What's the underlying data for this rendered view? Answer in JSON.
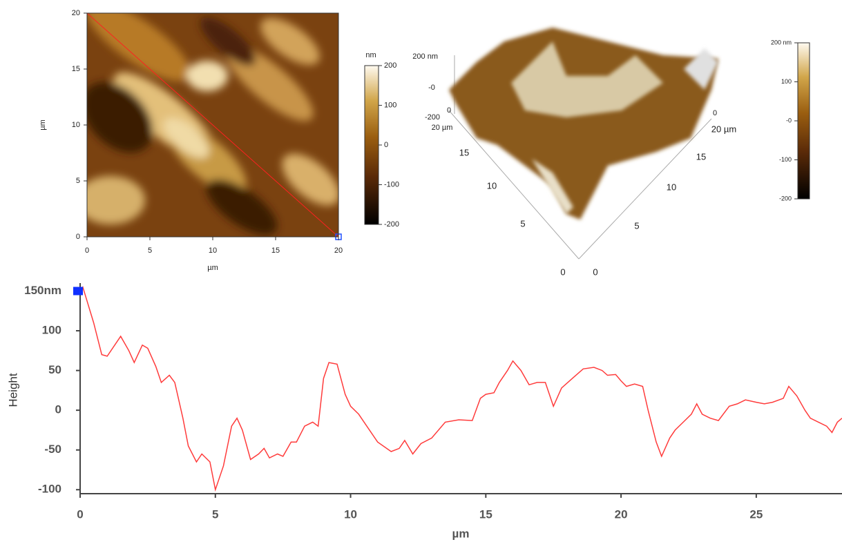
{
  "chart_data": [
    {
      "type": "heatmap",
      "xlabel": "µm",
      "ylabel": "µm",
      "xlim": [
        0,
        20
      ],
      "ylim": [
        0,
        20
      ],
      "xticks": [
        0,
        5,
        10,
        15,
        20
      ],
      "yticks": [
        0,
        5,
        10,
        15,
        20
      ],
      "colorbar_label": "nm",
      "clim": [
        -200,
        200
      ],
      "cticks": [
        -200,
        -100,
        0,
        100,
        200
      ]
    },
    {
      "type": "surface",
      "labels": [
        "200 nm",
        "-0",
        "-200",
        "0",
        "20 µm",
        "15",
        "10",
        "5",
        "0",
        "0",
        "5",
        "10",
        "15",
        "20 µm",
        "0"
      ],
      "clim": [
        -200,
        200
      ],
      "cticks": [
        {
          "value": 200,
          "label": "200 nm"
        },
        100,
        {
          "value": 0,
          "label": "-0"
        },
        -100,
        -200
      ]
    },
    {
      "type": "line",
      "xlabel": "µm",
      "ylabel": "Height",
      "color": "#ff3b3b",
      "xlim": [
        0,
        28.17
      ],
      "ylim": [
        -105,
        160
      ],
      "xticks": [
        0,
        5,
        10,
        15,
        20,
        25
      ],
      "yticks": [
        -100,
        -50,
        0,
        50,
        100,
        {
          "value": 150,
          "label": "150nm"
        }
      ],
      "x": [
        0,
        0.1,
        0.5,
        0.8,
        1.0,
        1.5,
        1.8,
        2.0,
        2.3,
        2.5,
        2.8,
        3.0,
        3.3,
        3.5,
        3.8,
        4.0,
        4.3,
        4.5,
        4.8,
        5.0,
        5.3,
        5.6,
        5.8,
        6.0,
        6.3,
        6.6,
        6.8,
        7.0,
        7.3,
        7.5,
        7.8,
        8.0,
        8.3,
        8.6,
        8.8,
        9.0,
        9.2,
        9.5,
        9.8,
        10.0,
        10.3,
        10.5,
        11.0,
        11.5,
        11.8,
        12.0,
        12.3,
        12.6,
        13.0,
        13.5,
        14.0,
        14.5,
        14.8,
        15.0,
        15.3,
        15.5,
        15.8,
        16.0,
        16.3,
        16.6,
        16.9,
        17.2,
        17.5,
        17.8,
        18.2,
        18.6,
        19.0,
        19.3,
        19.5,
        19.8,
        20.0,
        20.2,
        20.5,
        20.8,
        21.0,
        21.3,
        21.5,
        21.8,
        22.0,
        22.3,
        22.6,
        22.8,
        23.0,
        23.3,
        23.6,
        24.0,
        24.3,
        24.6,
        25.0,
        25.3,
        25.6,
        26.0,
        26.2,
        26.5,
        26.8,
        27.0,
        27.3,
        27.6,
        27.8,
        28.0,
        28.17
      ],
      "values": [
        150,
        155,
        110,
        70,
        68,
        93,
        75,
        60,
        82,
        78,
        55,
        35,
        44,
        35,
        -10,
        -45,
        -65,
        -55,
        -65,
        -100,
        -70,
        -20,
        -10,
        -25,
        -62,
        -55,
        -48,
        -60,
        -55,
        -58,
        -40,
        -40,
        -20,
        -15,
        -20,
        40,
        60,
        58,
        20,
        5,
        -5,
        -15,
        -40,
        -52,
        -48,
        -38,
        -55,
        -42,
        -35,
        -15,
        -12,
        -13,
        15,
        20,
        22,
        35,
        50,
        62,
        50,
        32,
        35,
        35,
        5,
        28,
        40,
        52,
        54,
        50,
        44,
        45,
        37,
        30,
        33,
        30,
        0,
        -40,
        -58,
        -35,
        -25,
        -15,
        -5,
        8,
        -5,
        -10,
        -13,
        5,
        8,
        13,
        10,
        8,
        10,
        15,
        30,
        18,
        0,
        -10,
        -15,
        -20,
        -28,
        -15,
        -10
      ]
    }
  ]
}
